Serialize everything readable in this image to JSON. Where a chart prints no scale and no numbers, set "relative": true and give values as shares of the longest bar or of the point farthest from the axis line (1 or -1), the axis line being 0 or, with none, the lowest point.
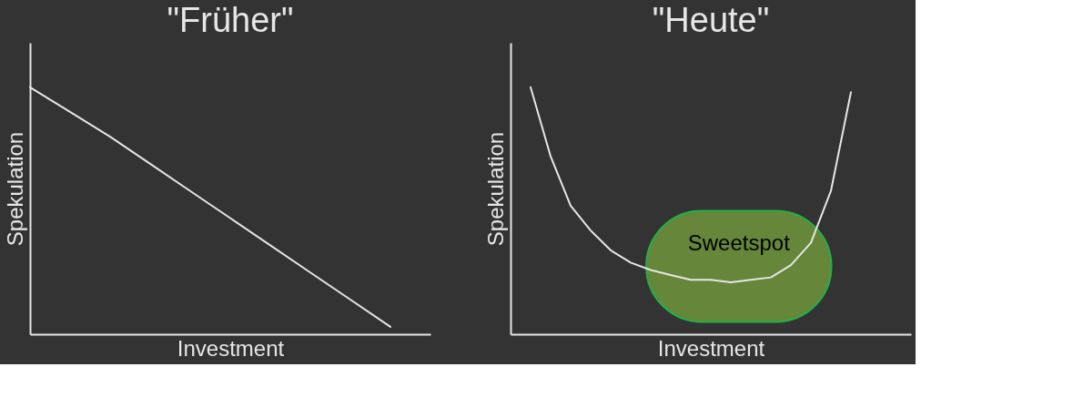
{
  "chart_data": [
    {
      "type": "line",
      "title": "\"Früher\"",
      "xlabel": "Investment",
      "ylabel": "Spekulation",
      "relative": true,
      "legend": false,
      "grid": false,
      "marker": "none",
      "line_style": "solid",
      "categories": [
        null,
        null,
        null,
        null,
        null,
        null,
        null,
        null,
        null,
        null,
        null
      ],
      "series": [
        {
          "color": "#e6e6e6",
          "values": [
            1.0,
            0.9,
            0.8,
            0.69,
            0.58,
            0.47,
            0.36,
            0.25,
            0.14,
            0.03,
            null
          ]
        }
      ]
    },
    {
      "type": "line",
      "title": "\"Heute\"",
      "xlabel": "Investment",
      "ylabel": "Spekulation",
      "relative": true,
      "legend": false,
      "grid": false,
      "marker": "none",
      "line_style": "solid",
      "bands": [
        {
          "axis": "y",
          "from": 0.05,
          "to": 0.5,
          "label": "Sweetspot",
          "color": "#6b8f3a"
        }
      ],
      "categories": [
        null,
        null,
        null,
        null,
        null,
        null,
        null,
        null,
        null,
        null,
        null,
        null,
        null,
        null,
        null,
        null,
        null,
        null,
        null,
        null,
        null
      ],
      "series": [
        {
          "color": "#e6e6e6",
          "values": [
            null,
            1.0,
            0.72,
            0.52,
            0.42,
            0.34,
            0.29,
            0.26,
            0.24,
            0.22,
            0.22,
            0.21,
            0.22,
            0.23,
            0.28,
            0.37,
            0.58,
            0.98,
            null,
            null,
            null
          ]
        }
      ]
    }
  ]
}
